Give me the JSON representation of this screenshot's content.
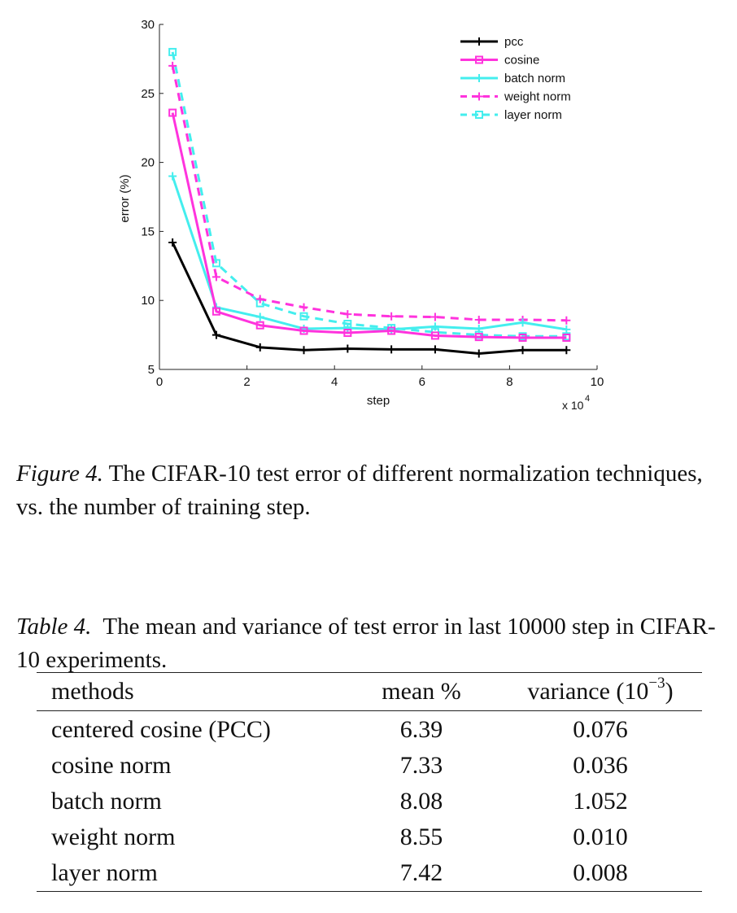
{
  "chart_data": {
    "type": "line",
    "xlabel": "step",
    "ylabel": "error (%)",
    "x_multiplier": "x 10",
    "x_multiplier_exp": "4",
    "xlim": [
      0,
      10
    ],
    "ylim": [
      5,
      30
    ],
    "xticks": [
      0,
      2,
      4,
      6,
      8,
      10
    ],
    "yticks": [
      5,
      10,
      15,
      20,
      25,
      30
    ],
    "grid": false,
    "legend_position": "top-right",
    "x": [
      0.3,
      1.3,
      2.3,
      3.3,
      4.3,
      5.3,
      6.3,
      7.3,
      8.3,
      9.3
    ],
    "series": [
      {
        "name": "pcc",
        "color": "#000000",
        "dash": false,
        "marker": "plus",
        "values": [
          14.2,
          7.5,
          6.6,
          6.4,
          6.5,
          6.45,
          6.45,
          6.15,
          6.4,
          6.4
        ]
      },
      {
        "name": "cosine",
        "color": "#ff33dd",
        "dash": false,
        "marker": "square",
        "values": [
          23.6,
          9.2,
          8.2,
          7.8,
          7.65,
          7.8,
          7.45,
          7.35,
          7.3,
          7.3
        ]
      },
      {
        "name": "batch norm",
        "color": "#44eeee",
        "dash": false,
        "marker": "plus",
        "values": [
          19.0,
          9.5,
          8.8,
          7.95,
          8.0,
          7.9,
          8.1,
          7.95,
          8.4,
          7.9
        ]
      },
      {
        "name": "weight norm",
        "color": "#ff33dd",
        "dash": true,
        "marker": "plus",
        "values": [
          27.0,
          11.7,
          10.1,
          9.5,
          9.0,
          8.85,
          8.8,
          8.6,
          8.6,
          8.55
        ]
      },
      {
        "name": "layer norm",
        "color": "#44eeee",
        "dash": true,
        "marker": "square",
        "values": [
          28.0,
          12.7,
          9.8,
          8.85,
          8.3,
          8.0,
          7.7,
          7.5,
          7.4,
          7.4
        ]
      }
    ]
  },
  "figure_caption": {
    "label": "Figure 4.",
    "text": " The CIFAR-10 test error of different normalization techniques, vs. the number of training step."
  },
  "table_caption": {
    "label": "Table 4.",
    "text": "  The mean and variance of test error in last 10000 step in CIFAR-10 experiments."
  },
  "table": {
    "headers": {
      "method": "methods",
      "mean": "mean %",
      "variance": "variance (10",
      "variance_exp": "−3",
      "variance_close": ")"
    },
    "rows": [
      {
        "method": "centered cosine (PCC)",
        "mean": "6.39",
        "variance": "0.076"
      },
      {
        "method": "cosine norm",
        "mean": "7.33",
        "variance": "0.036"
      },
      {
        "method": "batch norm",
        "mean": "8.08",
        "variance": "1.052"
      },
      {
        "method": "weight norm",
        "mean": "8.55",
        "variance": "0.010"
      },
      {
        "method": "layer norm",
        "mean": "7.42",
        "variance": "0.008"
      }
    ]
  }
}
